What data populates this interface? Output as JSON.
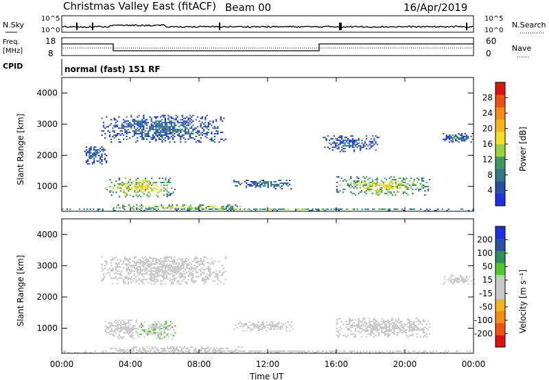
{
  "header": {
    "station": "Christmas Valley East (fitACF)",
    "beam": "Beam 00",
    "date": "16/Apr/2019"
  },
  "strips": {
    "nsky_label": "N.Sky",
    "nsearch_label": "N.Search",
    "noise_ticks": [
      "10^5",
      "10^0"
    ],
    "freq_label": "Freq.",
    "freq_unit": "[MHz]",
    "freq_ticks": [
      "18",
      "8"
    ],
    "nave_label": "Nave",
    "nave_ticks": [
      "60",
      "0"
    ],
    "cpid_label": "CPID",
    "cpid_text": "normal (fast) 151 RF"
  },
  "chart_data": [
    {
      "type": "heatmap",
      "name": "power",
      "x_ticks": [
        "00:00",
        "04:00",
        "08:00",
        "12:00",
        "16:00",
        "20:00",
        "00:00"
      ],
      "xlabel": "Time UT",
      "xlim_hours": [
        0,
        24
      ],
      "ylabel": "Slant Range [km]",
      "ylim": [
        200,
        4500
      ],
      "y_ticks": [
        1000,
        2000,
        3000,
        4000
      ],
      "colorbar": {
        "label": "Power [dB]",
        "ticks": [
          "4",
          "8",
          "12",
          "16",
          "20",
          "24",
          "28"
        ],
        "range": [
          0,
          30
        ],
        "colors": [
          "#1f2fe0",
          "#2a4fa8",
          "#31788a",
          "#3b9a5a",
          "#9ad23c",
          "#f0e020",
          "#f5b51a",
          "#f58a14",
          "#f05010",
          "#e01010"
        ]
      },
      "regions": [
        {
          "t": [
            2.5,
            6.6
          ],
          "r": [
            650,
            1250
          ],
          "level": 0.62
        },
        {
          "t": [
            2.8,
            10.5
          ],
          "r": [
            240,
            380
          ],
          "level": 0.6
        },
        {
          "t": [
            0,
            24
          ],
          "r": [
            200,
            290
          ],
          "level": 0.35
        },
        {
          "t": [
            16.0,
            21.5
          ],
          "r": [
            700,
            1300
          ],
          "level": 0.55
        },
        {
          "t": [
            2.3,
            9.5
          ],
          "r": [
            2400,
            3300
          ],
          "level": 0.18
        },
        {
          "t": [
            15.2,
            18.5
          ],
          "r": [
            2100,
            2600
          ],
          "level": 0.15
        },
        {
          "t": [
            22.2,
            24
          ],
          "r": [
            2400,
            2700
          ],
          "level": 0.15
        },
        {
          "t": [
            10.0,
            13.5
          ],
          "r": [
            900,
            1200
          ],
          "level": 0.2
        },
        {
          "t": [
            1.3,
            2.6
          ],
          "r": [
            1700,
            2300
          ],
          "level": 0.2
        }
      ]
    },
    {
      "type": "heatmap",
      "name": "velocity",
      "x_ticks": [
        "00:00",
        "04:00",
        "08:00",
        "12:00",
        "16:00",
        "20:00",
        "00:00"
      ],
      "xlabel": "Time UT",
      "xlim_hours": [
        0,
        24
      ],
      "ylabel": "Slant Range [km]",
      "ylim": [
        200,
        4500
      ],
      "y_ticks": [
        1000,
        2000,
        3000,
        4000
      ],
      "colorbar": {
        "label": "Velocity [m s⁻¹]",
        "ticks": [
          "200",
          "100",
          "50",
          "15",
          "-15",
          "-50",
          "-100",
          "-200"
        ],
        "range": [
          -250,
          250
        ],
        "colors": [
          "#e01010",
          "#f05010",
          "#f58a14",
          "#f5b51a",
          "#c8c8c8",
          "#c8c8c8",
          "#4fc830",
          "#2f8f5a",
          "#2a4fa8",
          "#1f2fe0"
        ]
      },
      "regions": [
        {
          "t": [
            2.5,
            4.5
          ],
          "r": [
            650,
            1250
          ],
          "v": -20
        },
        {
          "t": [
            4.5,
            6.6
          ],
          "r": [
            650,
            1250
          ],
          "v": 40
        },
        {
          "t": [
            2.8,
            10.5
          ],
          "r": [
            240,
            380
          ],
          "v": -5
        },
        {
          "t": [
            0,
            24
          ],
          "r": [
            200,
            290
          ],
          "v": -30
        },
        {
          "t": [
            16.0,
            21.5
          ],
          "r": [
            700,
            1300
          ],
          "v": 0
        },
        {
          "t": [
            2.3,
            9.5
          ],
          "r": [
            2400,
            3300
          ],
          "v": 0
        },
        {
          "t": [
            10.0,
            13.5
          ],
          "r": [
            900,
            1200
          ],
          "v": 30
        },
        {
          "t": [
            22.2,
            24
          ],
          "r": [
            2400,
            2700
          ],
          "v": 10
        }
      ]
    }
  ]
}
